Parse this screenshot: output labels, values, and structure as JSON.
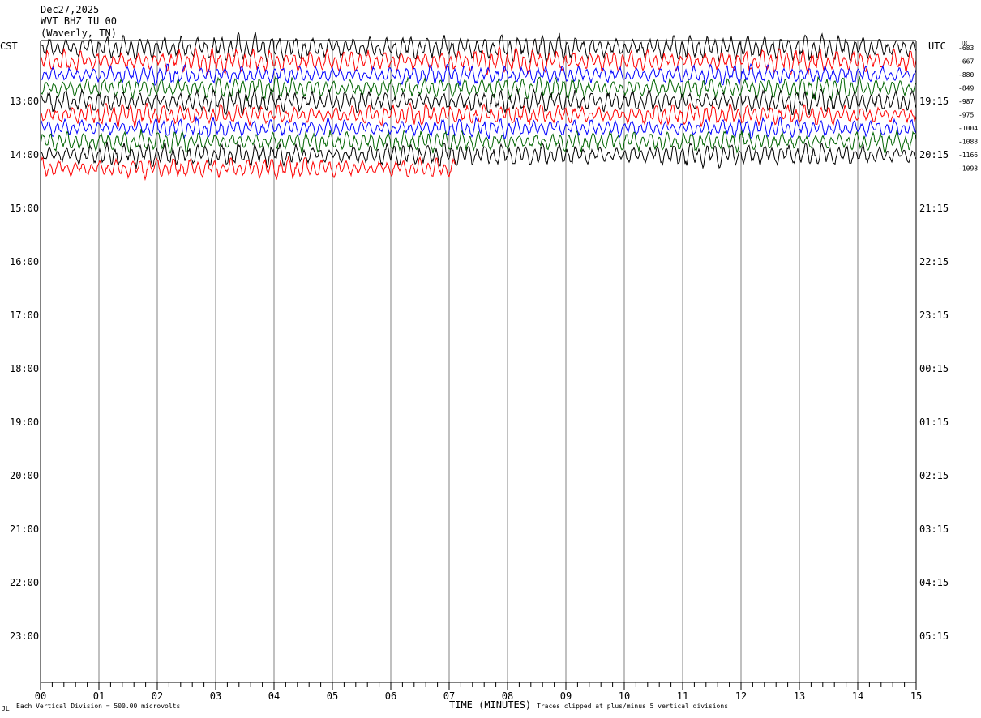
{
  "header": {
    "date": "Dec27,2025",
    "station": "WVT BHZ IU 00",
    "location": "(Waverly, TN)"
  },
  "labels": {
    "left_zone": "CST",
    "right_zone": "UTC",
    "dc": "DC"
  },
  "footer": {
    "scale_note": "Each Vertical Division =  500.00 microvolts",
    "xlabel": "TIME (MINUTES)",
    "clip_note": "Traces clipped at plus/minus 5 vertical divisions",
    "corner_mark": "JL"
  },
  "chart_data": {
    "type": "line",
    "title": "WVT BHZ IU 00",
    "xlabel": "TIME (MINUTES)",
    "xlim": [
      0,
      15
    ],
    "x_ticks": [
      "00",
      "01",
      "02",
      "03",
      "04",
      "05",
      "06",
      "07",
      "08",
      "09",
      "10",
      "11",
      "12",
      "13",
      "14",
      "15"
    ],
    "left_hour_labels": [
      "13:00",
      "14:00",
      "15:00",
      "16:00",
      "17:00",
      "18:00",
      "19:00",
      "20:00",
      "21:00",
      "22:00",
      "23:00"
    ],
    "right_hour_labels": [
      "19:15",
      "20:15",
      "21:15",
      "22:15",
      "23:15",
      "00:15",
      "01:15",
      "02:15",
      "03:15",
      "04:15",
      "05:15"
    ],
    "dc_offsets": [
      "-683",
      "-667",
      "-880",
      "-849",
      "-987",
      "-975",
      "-1004",
      "-1088",
      "-1166",
      "-1098"
    ],
    "trace_colors": [
      "#000000",
      "#ff0000",
      "#0000ff",
      "#006400"
    ],
    "grid": true,
    "series": [
      {
        "start": "12:00",
        "minutes": 15,
        "color": "#000000",
        "amplitude_divisions": 2.2
      },
      {
        "start": "12:15",
        "minutes": 15,
        "color": "#ff0000",
        "amplitude_divisions": 2.0
      },
      {
        "start": "12:30",
        "minutes": 15,
        "color": "#0000ff",
        "amplitude_divisions": 1.6
      },
      {
        "start": "12:45",
        "minutes": 15,
        "color": "#006400",
        "amplitude_divisions": 1.8
      },
      {
        "start": "13:00",
        "minutes": 15,
        "color": "#000000",
        "amplitude_divisions": 2.0
      },
      {
        "start": "13:15",
        "minutes": 15,
        "color": "#ff0000",
        "amplitude_divisions": 1.8
      },
      {
        "start": "13:30",
        "minutes": 15,
        "color": "#0000ff",
        "amplitude_divisions": 1.6
      },
      {
        "start": "13:45",
        "minutes": 15,
        "color": "#006400",
        "amplitude_divisions": 1.8
      },
      {
        "start": "14:00",
        "minutes": 15,
        "color": "#000000",
        "amplitude_divisions": 2.0
      },
      {
        "start": "14:15",
        "minutes": 7.1,
        "color": "#ff0000",
        "amplitude_divisions": 1.8
      }
    ]
  }
}
